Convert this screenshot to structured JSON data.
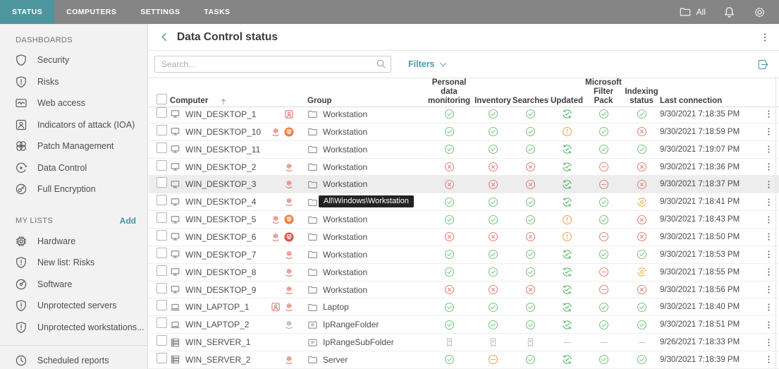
{
  "topbar": {
    "tabs": [
      {
        "label": "STATUS",
        "active": true
      },
      {
        "label": "COMPUTERS",
        "active": false
      },
      {
        "label": "SETTINGS",
        "active": false
      },
      {
        "label": "TASKS",
        "active": false
      }
    ],
    "group_filter_label": "All",
    "icons": [
      "folder-icon",
      "bell-icon",
      "gear-icon"
    ]
  },
  "sidebar": {
    "dashboards": {
      "title": "DASHBOARDS",
      "items": [
        {
          "icon": "shield",
          "label": "Security"
        },
        {
          "icon": "shield-alert",
          "label": "Risks"
        },
        {
          "icon": "web-access",
          "label": "Web access"
        },
        {
          "icon": "ioa",
          "label": "Indicators of attack (IOA)"
        },
        {
          "icon": "patch",
          "label": "Patch Management"
        },
        {
          "icon": "data-control",
          "label": "Data Control"
        },
        {
          "icon": "encryption",
          "label": "Full Encryption"
        }
      ]
    },
    "my_lists": {
      "title": "MY LISTS",
      "add_label": "Add",
      "items": [
        {
          "icon": "hardware",
          "label": "Hardware"
        },
        {
          "icon": "shield-alert",
          "label": "New list: Risks"
        },
        {
          "icon": "software",
          "label": "Software"
        },
        {
          "icon": "shield-alert",
          "label": "Unprotected servers"
        },
        {
          "icon": "shield-alert",
          "label": "Unprotected workstations..."
        }
      ]
    },
    "footer_item": {
      "icon": "clock",
      "label": "Scheduled reports"
    }
  },
  "header": {
    "title": "Data Control status"
  },
  "toolbar": {
    "search_placeholder": "Search...",
    "filters_label": "Filters"
  },
  "table": {
    "columns": [
      "",
      "Computer",
      "Group",
      "Personal data monitoring",
      "Inventory",
      "Searches",
      "Updated",
      "Microsoft Filter Pack",
      "Indexing status",
      "Last connection",
      ""
    ],
    "status_columns_order": [
      "personal_data_monitoring",
      "inventory",
      "searches",
      "updated",
      "microsoft_filter_pack",
      "indexing_status"
    ],
    "rows": [
      {
        "computer": "WIN_DESKTOP_1",
        "device": "desktop",
        "alerts": [
          "person-badge"
        ],
        "group": "Workstation",
        "group_icon": "folder",
        "statuses": [
          "ok",
          "ok",
          "ok",
          "updated",
          "ok",
          "ok"
        ],
        "last_connection": "9/30/2021 7:18:35 PM"
      },
      {
        "computer": "WIN_DESKTOP_10",
        "device": "desktop",
        "alerts": [
          "gear-red",
          "isolation-orange"
        ],
        "group": "Workstation",
        "group_icon": "folder",
        "statuses": [
          "ok",
          "ok",
          "ok",
          "warning",
          "ok",
          "error"
        ],
        "last_connection": "9/30/2021 7:18:59 PM"
      },
      {
        "computer": "WIN_DESKTOP_11",
        "device": "desktop",
        "alerts": [],
        "group": "Workstation",
        "group_icon": "folder",
        "statuses": [
          "ok",
          "ok",
          "ok",
          "updated",
          "ok",
          "ok"
        ],
        "last_connection": "9/30/2021 7:19:07 PM"
      },
      {
        "computer": "WIN_DESKTOP_2",
        "device": "desktop",
        "alerts": [
          "gear-red"
        ],
        "group": "Workstation",
        "group_icon": "folder",
        "statuses": [
          "error",
          "error",
          "error",
          "updated",
          "blocked",
          "error"
        ],
        "last_connection": "9/30/2021 7:18:36 PM"
      },
      {
        "computer": "WIN_DESKTOP_3",
        "device": "desktop",
        "alerts": [
          "gear-red"
        ],
        "group": "Workstation",
        "group_icon": "folder",
        "statuses": [
          "error",
          "error",
          "error",
          "updated",
          "blocked",
          "error"
        ],
        "last_connection": "9/30/2021 7:18:37 PM",
        "highlighted": true
      },
      {
        "computer": "WIN_DESKTOP_4",
        "device": "desktop",
        "alerts": [
          "gear-red"
        ],
        "group": "Workstation",
        "group_icon": "folder",
        "statuses": [
          "ok",
          "ok",
          "ok",
          "updated",
          "ok",
          "indexing"
        ],
        "last_connection": "9/30/2021 7:18:41 PM",
        "tooltip": "All\\Windows\\Workstation"
      },
      {
        "computer": "WIN_DESKTOP_5",
        "device": "desktop",
        "alerts": [
          "gear-red",
          "isolation-orange"
        ],
        "group": "Workstation",
        "group_icon": "folder",
        "statuses": [
          "ok",
          "ok",
          "ok",
          "warning",
          "ok",
          "error"
        ],
        "last_connection": "9/30/2021 7:18:43 PM"
      },
      {
        "computer": "WIN_DESKTOP_6",
        "device": "desktop",
        "alerts": [
          "gear-red",
          "isolation-red"
        ],
        "group": "Workstation",
        "group_icon": "folder",
        "statuses": [
          "error",
          "error",
          "error",
          "warning",
          "blocked",
          "error"
        ],
        "last_connection": "9/30/2021 7:18:50 PM"
      },
      {
        "computer": "WIN_DESKTOP_7",
        "device": "desktop",
        "alerts": [
          "gear-red"
        ],
        "group": "Workstation",
        "group_icon": "folder",
        "statuses": [
          "ok",
          "ok",
          "ok",
          "updated",
          "ok",
          "ok"
        ],
        "last_connection": "9/30/2021 7:18:53 PM"
      },
      {
        "computer": "WIN_DESKTOP_8",
        "device": "desktop",
        "alerts": [
          "gear-red"
        ],
        "group": "Workstation",
        "group_icon": "folder",
        "statuses": [
          "ok",
          "ok",
          "ok",
          "updated",
          "blocked",
          "indexing"
        ],
        "last_connection": "9/30/2021 7:18:55 PM"
      },
      {
        "computer": "WIN_DESKTOP_9",
        "device": "desktop",
        "alerts": [
          "gear-red"
        ],
        "group": "Workstation",
        "group_icon": "folder",
        "statuses": [
          "error",
          "error",
          "error",
          "updated",
          "blocked",
          "error"
        ],
        "last_connection": "9/30/2021 7:18:56 PM"
      },
      {
        "computer": "WIN_LAPTOP_1",
        "device": "laptop",
        "alerts": [
          "person-badge",
          "gear-red"
        ],
        "group": "Laptop",
        "group_icon": "folder",
        "statuses": [
          "ok",
          "ok",
          "ok",
          "updated",
          "ok",
          "ok"
        ],
        "last_connection": "9/30/2021 7:18:40 PM"
      },
      {
        "computer": "WIN_LAPTOP_2",
        "device": "laptop",
        "alerts": [
          "gear-gray"
        ],
        "group": "IpRangeFolder",
        "group_icon": "folder-ip",
        "statuses": [
          "ok",
          "ok",
          "ok",
          "updated",
          "ok",
          "ok"
        ],
        "last_connection": "9/30/2021 7:18:51 PM"
      },
      {
        "computer": "WIN_SERVER_1",
        "device": "server",
        "alerts": [],
        "group": "IpRangeSubFolder",
        "group_icon": "folder-ip",
        "statuses": [
          "no-data",
          "no-data",
          "no-data",
          "dash",
          "dash",
          "dash"
        ],
        "last_connection": "9/26/2021 7:18:33 PM"
      },
      {
        "computer": "WIN_SERVER_2",
        "device": "server",
        "alerts": [
          "gear-red"
        ],
        "group": "Server",
        "group_icon": "folder",
        "statuses": [
          "ok",
          "blocked-orange",
          "ok",
          "updated",
          "ok",
          "ok"
        ],
        "last_connection": "9/30/2021 7:18:39 PM"
      }
    ]
  },
  "colors": {
    "accent_teal": "#4A9AA6",
    "active_tab": "#4D969F",
    "topbar_gray": "#858585",
    "status_green": "#79C77F",
    "status_red": "#E1837C",
    "status_orange": "#EFA644",
    "updated_green": "#53B668",
    "sidebar_bg": "#F2F2F2"
  }
}
